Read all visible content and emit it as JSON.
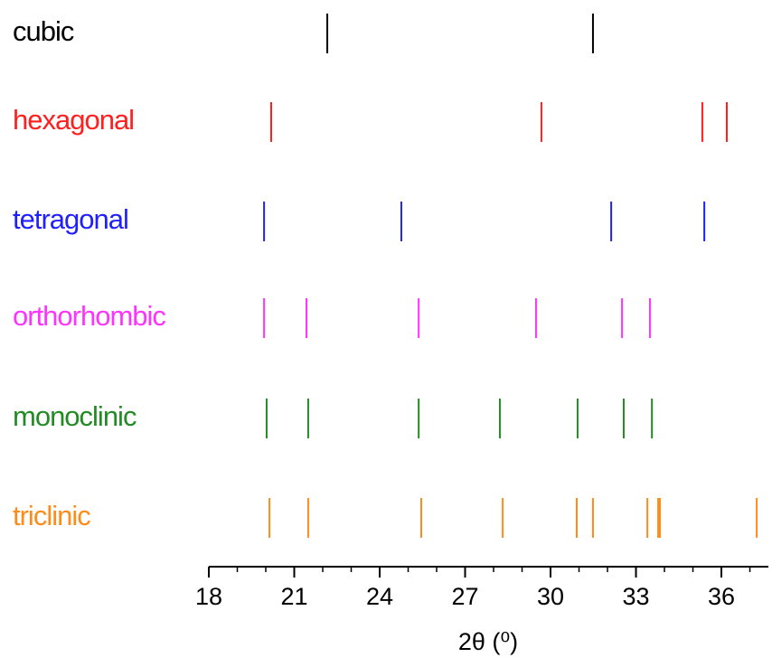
{
  "chart_data": {
    "type": "stick",
    "xlabel": "2θ (⁰)",
    "xlim": [
      18,
      37.65
    ],
    "xticks": [
      18,
      21,
      24,
      27,
      30,
      33,
      36
    ],
    "xminorticks": [
      19,
      20,
      22,
      23,
      25,
      26,
      28,
      29,
      31,
      32,
      34,
      35,
      37
    ],
    "series": [
      {
        "name": "cubic",
        "color": "#000000",
        "values": [
          22.16,
          31.49
        ]
      },
      {
        "name": "hexagonal",
        "color": "#ff1f1f",
        "values": [
          20.19,
          29.68,
          35.33,
          36.19
        ]
      },
      {
        "name": "tetragonal",
        "color": "#1f1fff",
        "values": [
          19.94,
          24.76,
          32.13,
          35.4
        ]
      },
      {
        "name": "orthorhombic",
        "color": "#ff33ff",
        "values": [
          19.94,
          21.43,
          25.37,
          29.49,
          32.51,
          33.49
        ]
      },
      {
        "name": "monoclinic",
        "color": "#238b23",
        "values": [
          20.03,
          21.49,
          25.37,
          28.22,
          30.95,
          32.57,
          33.56
        ]
      },
      {
        "name": "triclinic",
        "color": "#ff8c1a",
        "values": [
          20.13,
          21.49,
          25.46,
          28.32,
          30.92,
          31.49,
          33.4,
          33.78,
          33.84,
          37.24
        ]
      }
    ]
  }
}
